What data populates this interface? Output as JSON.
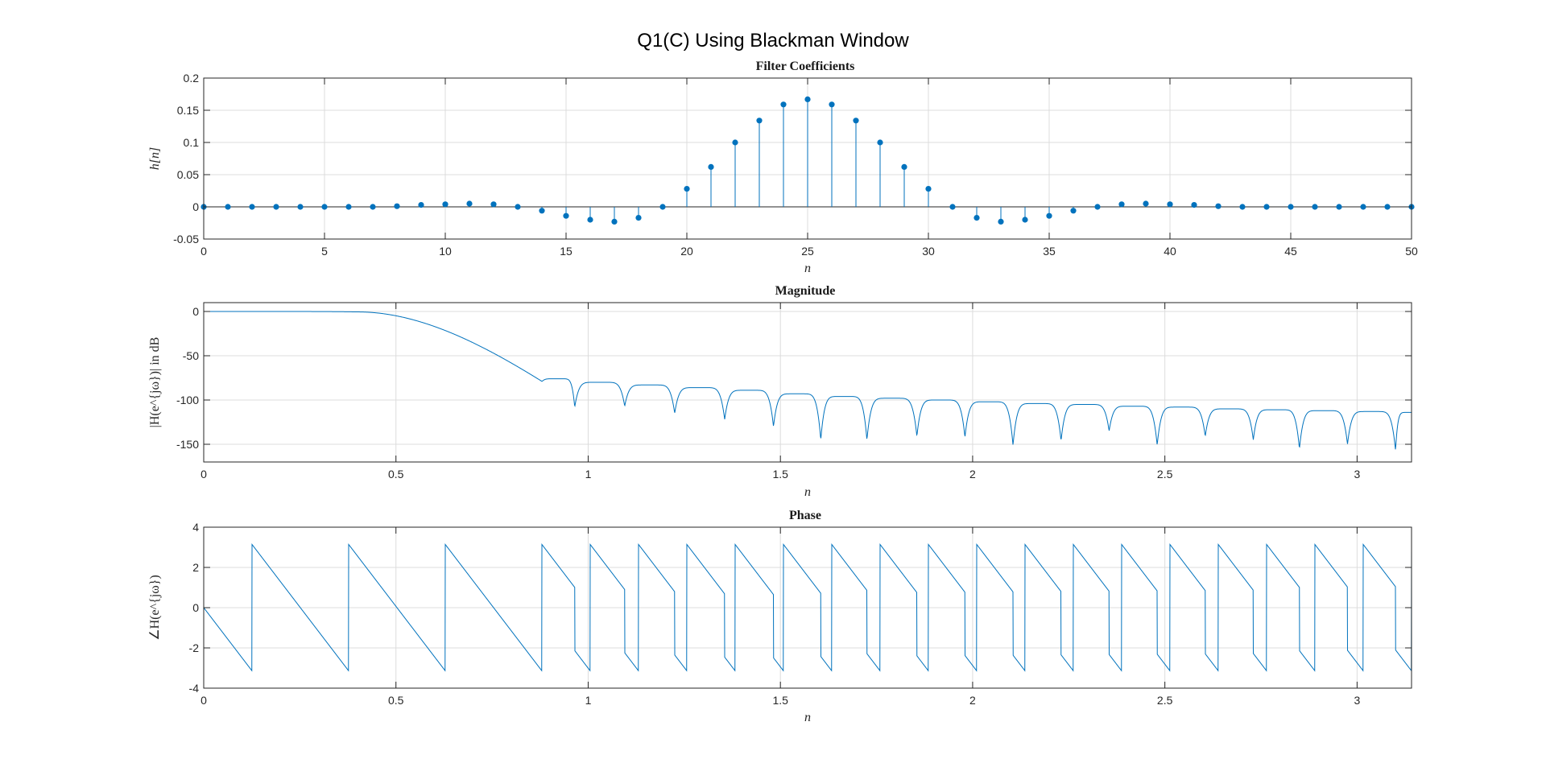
{
  "figure_title": "Q1(C) Using Blackman Window",
  "colors": {
    "series": "#0072BD",
    "grid": "#dcdcdc",
    "axes": "#262626"
  },
  "chart_data": [
    {
      "type": "stem",
      "title": "Filter Coefficients",
      "xlabel": "n",
      "ylabel": "h[n]",
      "xlim": [
        0,
        50
      ],
      "ylim": [
        -0.05,
        0.2
      ],
      "xticks": [
        0,
        5,
        10,
        15,
        20,
        25,
        30,
        35,
        40,
        45,
        50
      ],
      "yticks": [
        -0.05,
        0,
        0.05,
        0.1,
        0.15,
        0.2
      ],
      "ytick_labels": [
        "-0.05",
        "0",
        "0.05",
        "0.1",
        "0.15",
        "0.2"
      ],
      "grid": true,
      "series": [
        {
          "x": [
            0,
            1,
            2,
            3,
            4,
            5,
            6,
            7,
            8,
            9,
            10,
            11,
            12,
            13,
            14,
            15,
            16,
            17,
            18,
            19,
            20,
            21,
            22,
            23,
            24,
            25,
            26,
            27,
            28,
            29,
            30,
            31,
            32,
            33,
            34,
            35,
            36,
            37,
            38,
            39,
            40,
            41,
            42,
            43,
            44,
            45,
            46,
            47,
            48,
            49,
            50
          ],
          "values": [
            0,
            0,
            0,
            0,
            0,
            0,
            0,
            0,
            0.001,
            0.003,
            0.004,
            0.005,
            0.004,
            0,
            -0.006,
            -0.014,
            -0.02,
            -0.023,
            -0.017,
            0,
            0.028,
            0.062,
            0.1,
            0.134,
            0.159,
            0.167,
            0.159,
            0.134,
            0.1,
            0.062,
            0.028,
            0,
            -0.017,
            -0.023,
            -0.02,
            -0.014,
            -0.006,
            0,
            0.004,
            0.005,
            0.004,
            0.003,
            0.001,
            0,
            0,
            0,
            0,
            0,
            0,
            0,
            0
          ]
        }
      ]
    },
    {
      "type": "line",
      "title": "Magnitude",
      "xlabel": "n",
      "ylabel": "|H(e^{jω})| in dB",
      "xlim": [
        0,
        3.1416
      ],
      "ylim": [
        -170,
        10
      ],
      "xticks": [
        0,
        0.5,
        1,
        1.5,
        2,
        2.5,
        3
      ],
      "yticks": [
        -150,
        -100,
        -50,
        0
      ],
      "grid": true,
      "passband_edge": 0.4,
      "transition_end": 0.88,
      "transition_floor_db": -79,
      "nulls": [
        0.965,
        1.095,
        1.225,
        1.355,
        1.482,
        1.605,
        1.725,
        1.855,
        1.98,
        2.105,
        2.23,
        2.355,
        2.48,
        2.605,
        2.73,
        2.85,
        2.975,
        3.1
      ],
      "null_depths_db": [
        -108,
        -107,
        -115,
        -122,
        -130,
        -145,
        -145,
        -141,
        -142,
        -151,
        -146,
        -135,
        -151,
        -141,
        -145,
        -155,
        -150,
        -157
      ],
      "lobe_peaks_db": [
        -76,
        -80,
        -83,
        -86,
        -89,
        -93,
        -96,
        -98,
        -100,
        -102,
        -104,
        -105,
        -107,
        -108,
        -110,
        -111,
        -112,
        -113,
        -114
      ]
    },
    {
      "type": "line",
      "title": "Phase",
      "xlabel": "n",
      "ylabel": "∠H(e^{jω})",
      "xlim": [
        0,
        3.1416
      ],
      "ylim": [
        -4,
        4
      ],
      "xticks": [
        0,
        0.5,
        1,
        1.5,
        2,
        2.5,
        3
      ],
      "yticks": [
        -4,
        -2,
        0,
        2,
        4
      ],
      "grid": true,
      "group_delay_samples": 25,
      "wrap_limits": [
        -3.1416,
        3.1416
      ],
      "nulls": [
        0.965,
        1.095,
        1.225,
        1.355,
        1.482,
        1.605,
        1.725,
        1.855,
        1.98,
        2.105,
        2.23,
        2.355,
        2.48,
        2.605,
        2.73,
        2.85,
        2.975,
        3.1
      ]
    }
  ]
}
